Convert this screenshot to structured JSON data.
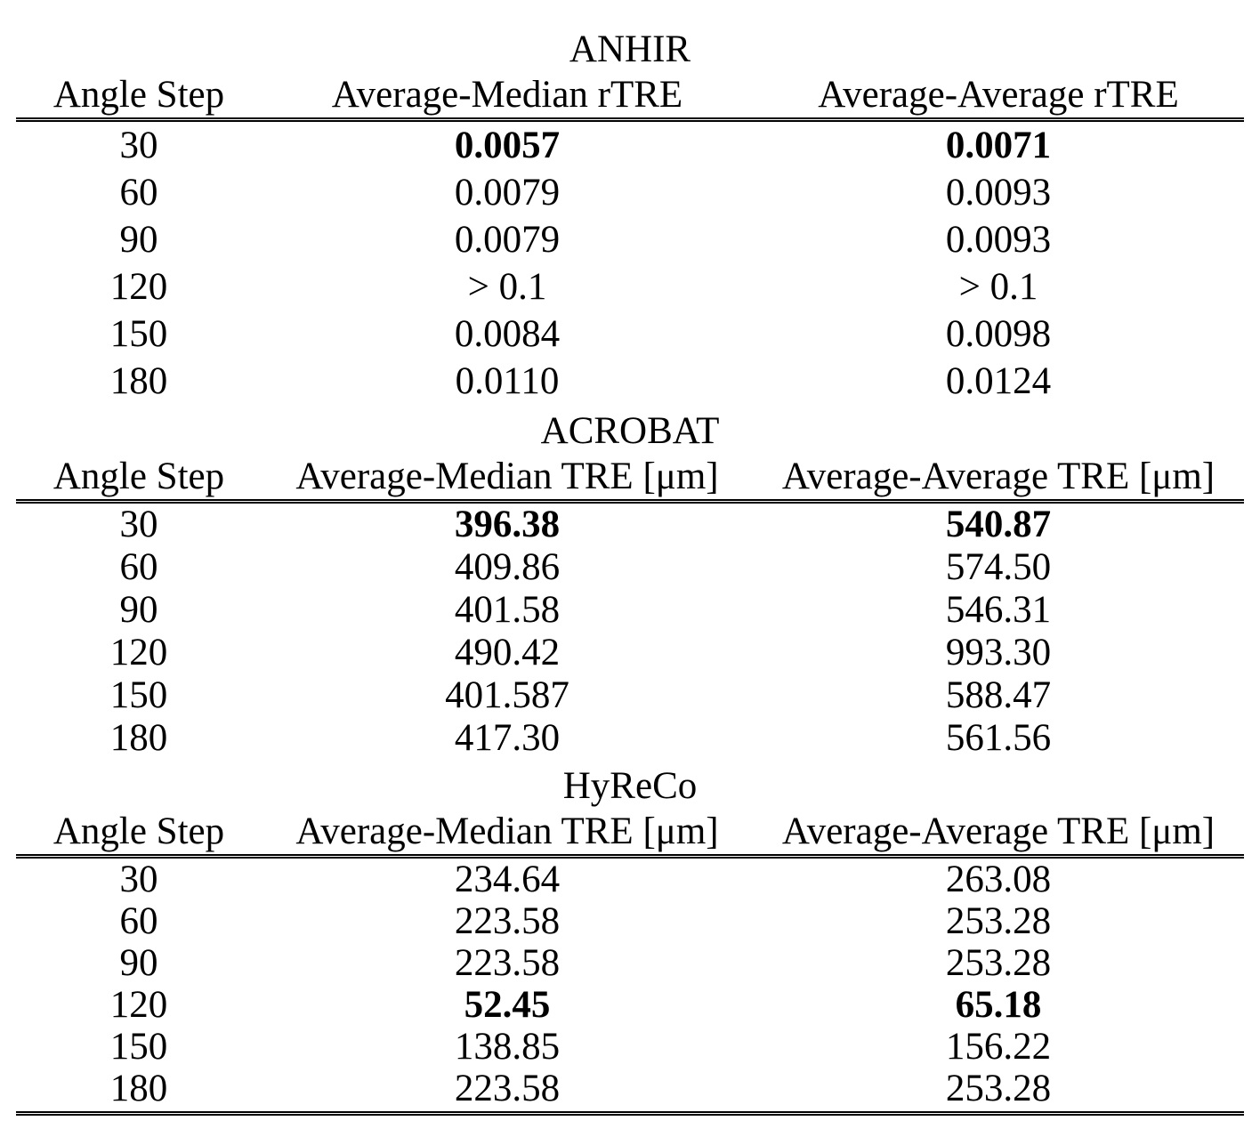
{
  "page": {
    "background_color": "#ffffff",
    "text_color": "#000000"
  },
  "tables": [
    {
      "title": "ANHIR",
      "columns": [
        "Angle Step",
        "Average-Median rTRE",
        "Average-Average rTRE"
      ],
      "rows": [
        {
          "angle": "30",
          "median": "0.0057",
          "average": "0.0071",
          "bold": true
        },
        {
          "angle": "60",
          "median": "0.0079",
          "average": "0.0093",
          "bold": false
        },
        {
          "angle": "90",
          "median": "0.0079",
          "average": "0.0093",
          "bold": false
        },
        {
          "angle": "120",
          "median": "> 0.1",
          "average": "> 0.1",
          "bold": false
        },
        {
          "angle": "150",
          "median": "0.0084",
          "average": "0.0098",
          "bold": false
        },
        {
          "angle": "180",
          "median": "0.0110",
          "average": "0.0124",
          "bold": false
        }
      ]
    },
    {
      "title": "ACROBAT",
      "columns": [
        "Angle Step",
        "Average-Median TRE [μm]",
        "Average-Average TRE [μm]"
      ],
      "rows": [
        {
          "angle": "30",
          "median": "396.38",
          "average": "540.87",
          "bold": true
        },
        {
          "angle": "60",
          "median": "409.86",
          "average": "574.50",
          "bold": false
        },
        {
          "angle": "90",
          "median": "401.58",
          "average": "546.31",
          "bold": false
        },
        {
          "angle": "120",
          "median": "490.42",
          "average": "993.30",
          "bold": false
        },
        {
          "angle": "150",
          "median": "401.587",
          "average": "588.47",
          "bold": false
        },
        {
          "angle": "180",
          "median": "417.30",
          "average": "561.56",
          "bold": false
        }
      ]
    },
    {
      "title": "HyReCo",
      "columns": [
        "Angle Step",
        "Average-Median TRE [μm]",
        "Average-Average TRE [μm]"
      ],
      "rows": [
        {
          "angle": "30",
          "median": "234.64",
          "average": "263.08",
          "bold": false
        },
        {
          "angle": "60",
          "median": "223.58",
          "average": "253.28",
          "bold": false
        },
        {
          "angle": "90",
          "median": "223.58",
          "average": "253.28",
          "bold": false
        },
        {
          "angle": "120",
          "median": "52.45",
          "average": "65.18",
          "bold": true
        },
        {
          "angle": "150",
          "median": "138.85",
          "average": "156.22",
          "bold": false
        },
        {
          "angle": "180",
          "median": "223.58",
          "average": "253.28",
          "bold": false
        }
      ]
    }
  ]
}
